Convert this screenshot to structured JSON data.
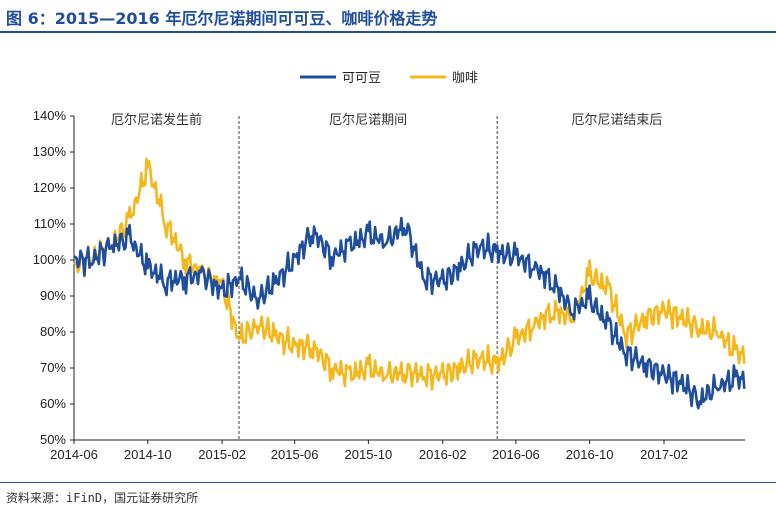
{
  "figure": {
    "title": "图 6：2015—2016 年厄尔尼诺期间可可豆、咖啡价格走势",
    "source": "资料来源：iFinD，国元证券研究所"
  },
  "chart_data": {
    "type": "line",
    "title": "",
    "xlabel": "",
    "ylabel": "",
    "ylim": [
      50,
      140
    ],
    "yticks": [
      "50%",
      "60%",
      "70%",
      "80%",
      "90%",
      "100%",
      "110%",
      "120%",
      "130%",
      "140%"
    ],
    "xticks": [
      "2014-06",
      "2014-10",
      "2015-02",
      "2015-06",
      "2015-10",
      "2016-02",
      "2016-06",
      "2016-10",
      "2017-02"
    ],
    "legend_position": "top-center",
    "grid": false,
    "periods": [
      {
        "label": "厄尔尼诺发生前",
        "start": "2014-06",
        "end": "2015-03"
      },
      {
        "label": "厄尔尼诺期间",
        "start": "2015-03",
        "end": "2016-05"
      },
      {
        "label": "厄尔尼诺结束后",
        "start": "2016-05",
        "end": "2017-06"
      }
    ],
    "x": [
      "2014-06",
      "2014-07",
      "2014-08",
      "2014-09",
      "2014-10",
      "2014-11",
      "2014-12",
      "2015-01",
      "2015-02",
      "2015-03",
      "2015-04",
      "2015-05",
      "2015-06",
      "2015-07",
      "2015-08",
      "2015-09",
      "2015-10",
      "2015-11",
      "2015-12",
      "2016-01",
      "2016-02",
      "2016-03",
      "2016-04",
      "2016-05",
      "2016-06",
      "2016-07",
      "2016-08",
      "2016-09",
      "2016-10",
      "2016-11",
      "2016-12",
      "2017-01",
      "2017-02",
      "2017-03",
      "2017-04",
      "2017-05",
      "2017-06"
    ],
    "series": [
      {
        "name": "可可豆",
        "color": "#1f4e9c",
        "values": [
          100,
          100,
          104,
          106,
          98,
          94,
          95,
          96,
          91,
          95,
          89,
          94,
          100,
          108,
          101,
          104,
          107,
          105,
          110,
          95,
          94,
          98,
          104,
          102,
          101,
          98,
          94,
          86,
          89,
          82,
          74,
          71,
          68,
          66,
          61,
          65,
          67
        ]
      },
      {
        "name": "咖啡",
        "color": "#f5b81c",
        "values": [
          98,
          101,
          104,
          111,
          126,
          110,
          100,
          96,
          93,
          78,
          82,
          79,
          76,
          76,
          70,
          68,
          70,
          68,
          69,
          68,
          68,
          70,
          73,
          71,
          78,
          82,
          86,
          84,
          96,
          92,
          79,
          84,
          86,
          84,
          81,
          80,
          74
        ]
      }
    ]
  }
}
